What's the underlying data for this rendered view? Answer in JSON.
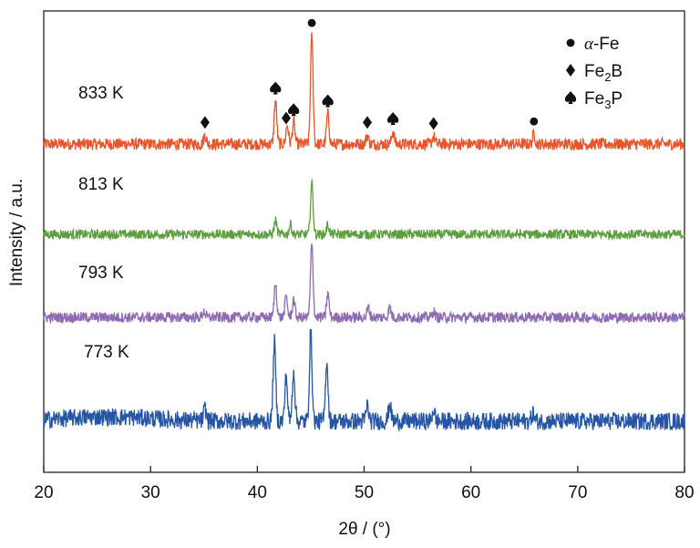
{
  "chart_data": {
    "type": "line",
    "xlabel": "2θ / (°)",
    "ylabel": "Intensity / a.u.",
    "xlim": [
      20,
      80
    ],
    "x_ticks": [
      "20",
      "30",
      "40",
      "50",
      "60",
      "70",
      "80"
    ],
    "grid": false,
    "legend_position": "top-right",
    "legend": [
      {
        "symbol": "circle",
        "text_prefix": "α",
        "text_rest": "-Fe"
      },
      {
        "symbol": "diamond",
        "text_main": "Fe",
        "text_sub": "2",
        "text_after": "B"
      },
      {
        "symbol": "spade",
        "text_main": "Fe",
        "text_sub": "3",
        "text_after": "P"
      }
    ],
    "series": [
      {
        "name": "833 K",
        "color": "#e8552a",
        "noise": 1.0,
        "peaks": [
          {
            "x": 35.1,
            "h": 0.9
          },
          {
            "x": 41.7,
            "h": 4.4
          },
          {
            "x": 42.8,
            "h": 1.9
          },
          {
            "x": 43.4,
            "h": 2.2
          },
          {
            "x": 45.1,
            "h": 11.0
          },
          {
            "x": 46.6,
            "h": 3.1
          },
          {
            "x": 50.3,
            "h": 0.9
          },
          {
            "x": 52.7,
            "h": 1.3
          },
          {
            "x": 56.5,
            "h": 0.8
          },
          {
            "x": 65.9,
            "h": 1.0
          }
        ]
      },
      {
        "name": "813 K",
        "color": "#5d9e3f",
        "noise": 0.8,
        "peaks": [
          {
            "x": 41.7,
            "h": 1.4
          },
          {
            "x": 43.1,
            "h": 1.0
          },
          {
            "x": 45.1,
            "h": 5.2
          },
          {
            "x": 46.6,
            "h": 1.0
          }
        ]
      },
      {
        "name": "793 K",
        "color": "#8d6bb2",
        "noise": 0.9,
        "peaks": [
          {
            "x": 35.0,
            "h": 0.6
          },
          {
            "x": 41.7,
            "h": 3.4
          },
          {
            "x": 42.7,
            "h": 2.1
          },
          {
            "x": 43.4,
            "h": 1.8
          },
          {
            "x": 45.1,
            "h": 7.4
          },
          {
            "x": 46.6,
            "h": 2.4
          },
          {
            "x": 50.4,
            "h": 1.0
          },
          {
            "x": 52.4,
            "h": 1.0
          },
          {
            "x": 56.5,
            "h": 0.6
          }
        ]
      },
      {
        "name": "773 K",
        "color": "#2655a5",
        "noise": 1.5,
        "peaks": [
          {
            "x": 35.1,
            "h": 1.2
          },
          {
            "x": 41.6,
            "h": 8.0
          },
          {
            "x": 42.7,
            "h": 4.6
          },
          {
            "x": 43.4,
            "h": 5.2
          },
          {
            "x": 45.0,
            "h": 9.0
          },
          {
            "x": 46.5,
            "h": 6.2
          },
          {
            "x": 50.3,
            "h": 1.6
          },
          {
            "x": 52.4,
            "h": 1.8
          },
          {
            "x": 56.5,
            "h": 1.2
          },
          {
            "x": 65.8,
            "h": 0.8
          }
        ]
      }
    ],
    "annotations": [
      {
        "x": 35.1,
        "symbol": "diamond"
      },
      {
        "x": 41.7,
        "symbol": "spade"
      },
      {
        "x": 42.7,
        "symbol": "diamond"
      },
      {
        "x": 43.4,
        "symbol": "spade"
      },
      {
        "x": 45.1,
        "symbol": "circle"
      },
      {
        "x": 46.6,
        "symbol": "spade"
      },
      {
        "x": 50.3,
        "symbol": "diamond"
      },
      {
        "x": 52.7,
        "symbol": "spade"
      },
      {
        "x": 56.5,
        "symbol": "diamond"
      },
      {
        "x": 65.9,
        "symbol": "circle"
      }
    ]
  }
}
